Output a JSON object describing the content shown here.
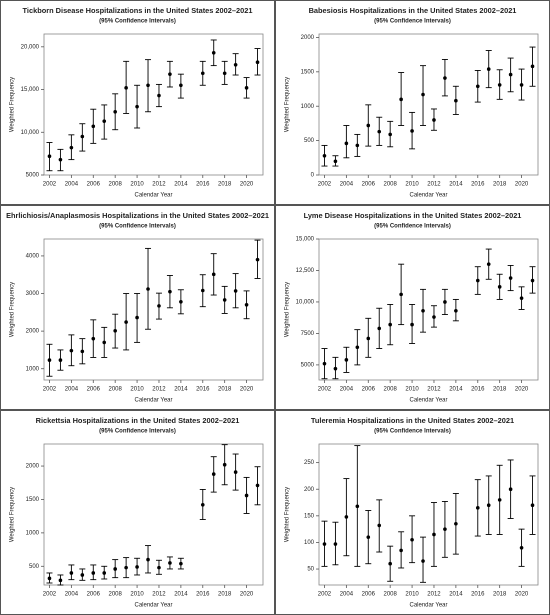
{
  "chart_data": [
    {
      "type": "errorbar",
      "title": "Tickborn Disease Hospitalizations in the United States 2002–2021",
      "subtitle": "(95% Confidence Intervals)",
      "xlabel": "Calendar Year",
      "ylabel": "Weighted Frequency",
      "color": "#000000",
      "x": [
        2002,
        2003,
        2004,
        2005,
        2006,
        2007,
        2008,
        2009,
        2010,
        2011,
        2012,
        2013,
        2014,
        2016,
        2017,
        2018,
        2019,
        2020,
        2021
      ],
      "values": [
        7200,
        6800,
        8200,
        9500,
        10700,
        11300,
        12400,
        15200,
        13000,
        15500,
        14300,
        16800,
        15500,
        16900,
        19300,
        16900,
        17900,
        15200,
        18200
      ],
      "lower": [
        5500,
        5500,
        6800,
        7800,
        8700,
        9200,
        10300,
        12200,
        10500,
        12400,
        13000,
        15300,
        14000,
        15500,
        17800,
        15600,
        16700,
        14000,
        16700
      ],
      "upper": [
        8800,
        8000,
        9700,
        11000,
        12700,
        13200,
        14500,
        18300,
        15500,
        18500,
        15600,
        18300,
        16800,
        18300,
        20800,
        18300,
        19200,
        16400,
        19800
      ],
      "xlim": [
        2001.5,
        2021.5
      ],
      "xticks": [
        2002,
        2004,
        2006,
        2008,
        2010,
        2012,
        2014,
        2016,
        2018,
        2020
      ],
      "ylim": [
        5000,
        21500
      ],
      "yticks": [
        5000,
        {
          "value": 10000,
          "label": "10,000"
        },
        {
          "value": 15000,
          "label": "15,000"
        },
        {
          "value": 20000,
          "label": "20,000"
        }
      ]
    },
    {
      "type": "errorbar",
      "title": "Babesiosis  Hospitalizations in the United States 2002–2021",
      "subtitle": "(95% Confidence Intervals)",
      "xlabel": "Calendar Year",
      "ylabel": "Weighted Frequency",
      "color": "#000000",
      "x": [
        2002,
        2003,
        2004,
        2005,
        2006,
        2007,
        2008,
        2009,
        2010,
        2011,
        2012,
        2013,
        2014,
        2016,
        2017,
        2018,
        2019,
        2020,
        2021
      ],
      "values": [
        280,
        200,
        460,
        430,
        720,
        630,
        590,
        1100,
        640,
        1170,
        800,
        1410,
        1080,
        1290,
        1540,
        1310,
        1460,
        1310,
        1580
      ],
      "lower": [
        130,
        130,
        250,
        270,
        420,
        430,
        410,
        720,
        380,
        720,
        650,
        1150,
        880,
        1060,
        1270,
        1100,
        1210,
        1090,
        1290
      ],
      "upper": [
        430,
        280,
        720,
        590,
        1020,
        840,
        780,
        1490,
        910,
        1590,
        960,
        1680,
        1290,
        1520,
        1810,
        1530,
        1700,
        1540,
        1860
      ],
      "xlim": [
        2001.5,
        2021.5
      ],
      "xticks": [
        2002,
        2004,
        2006,
        2008,
        2010,
        2012,
        2014,
        2016,
        2018,
        2020
      ],
      "ylim": [
        0,
        2050
      ],
      "yticks": [
        0,
        500,
        1000,
        1500,
        2000
      ]
    },
    {
      "type": "errorbar",
      "title": "Ehrlichiosis/Anaplasmosis Hospitalizations in the United States 2002–2021",
      "subtitle": "(95% Confidence Intervals)",
      "xlabel": "Calendar Year",
      "ylabel": "Weighted Frequency",
      "color": "#000000",
      "x": [
        2002,
        2003,
        2004,
        2005,
        2006,
        2007,
        2008,
        2009,
        2010,
        2011,
        2012,
        2013,
        2014,
        2016,
        2017,
        2018,
        2019,
        2020,
        2021
      ],
      "values": [
        1230,
        1230,
        1480,
        1460,
        1800,
        1700,
        2010,
        2240,
        2360,
        3120,
        2670,
        3050,
        2780,
        3080,
        3510,
        2830,
        3070,
        2700,
        3900
      ],
      "lower": [
        800,
        960,
        1080,
        1130,
        1300,
        1300,
        1550,
        1500,
        1700,
        2050,
        2320,
        2620,
        2460,
        2650,
        2960,
        2470,
        2620,
        2330,
        3400
      ],
      "upper": [
        1650,
        1500,
        1900,
        1800,
        2300,
        2100,
        2450,
        3000,
        3000,
        4200,
        3010,
        3480,
        3100,
        3500,
        4060,
        3190,
        3530,
        3070,
        4420
      ],
      "xlim": [
        2001.5,
        2021.5
      ],
      "xticks": [
        2002,
        2004,
        2006,
        2008,
        2010,
        2012,
        2014,
        2016,
        2018,
        2020
      ],
      "ylim": [
        700,
        4450
      ],
      "yticks": [
        1000,
        2000,
        3000,
        4000
      ]
    },
    {
      "type": "errorbar",
      "title": "Lyme Disease Hospitalizations in the United States 2002–2021",
      "subtitle": "(95% Confidence Intervals)",
      "xlabel": "Calendar Year",
      "ylabel": "Weighted Frequency",
      "color": "#000000",
      "x": [
        2002,
        2003,
        2004,
        2005,
        2006,
        2007,
        2008,
        2009,
        2010,
        2011,
        2012,
        2013,
        2014,
        2016,
        2017,
        2018,
        2019,
        2020,
        2021
      ],
      "values": [
        5100,
        4700,
        5400,
        6400,
        7100,
        7900,
        8200,
        10600,
        8200,
        9300,
        8800,
        10000,
        9300,
        11700,
        13000,
        11200,
        11900,
        10300,
        11700
      ],
      "lower": [
        3900,
        3900,
        4400,
        5000,
        5600,
        6300,
        6600,
        8200,
        6700,
        7600,
        8000,
        9000,
        8500,
        10600,
        11800,
        10200,
        10900,
        9400,
        10700
      ],
      "upper": [
        6300,
        5600,
        6400,
        7800,
        8700,
        9500,
        9800,
        13000,
        9800,
        11000,
        9700,
        11000,
        10200,
        12800,
        14200,
        12200,
        12900,
        11200,
        12800
      ],
      "xlim": [
        2001.5,
        2021.5
      ],
      "xticks": [
        2002,
        2004,
        2006,
        2008,
        2010,
        2012,
        2014,
        2016,
        2018,
        2020
      ],
      "ylim": [
        3800,
        15000
      ],
      "yticks": [
        5000,
        7500,
        {
          "value": 10000,
          "label": "10,000"
        },
        {
          "value": 12500,
          "label": "12,500"
        },
        {
          "value": 15000,
          "label": "15,000"
        }
      ]
    },
    {
      "type": "errorbar",
      "title": "Rickettsia Hospitalizations in the United States 2002–2021",
      "subtitle": "(95% Confidence Intervals)",
      "xlabel": "Calendar Year",
      "ylabel": "Weighted Frequency",
      "color": "#000000",
      "x": [
        2002,
        2003,
        2004,
        2005,
        2006,
        2007,
        2008,
        2009,
        2010,
        2011,
        2012,
        2013,
        2014,
        2016,
        2017,
        2018,
        2019,
        2020,
        2021
      ],
      "values": [
        320,
        290,
        400,
        370,
        400,
        400,
        460,
        480,
        490,
        600,
        480,
        550,
        540,
        1420,
        1880,
        2020,
        1910,
        1560,
        1710
      ],
      "lower": [
        250,
        220,
        300,
        290,
        300,
        310,
        330,
        330,
        370,
        400,
        380,
        460,
        460,
        1200,
        1610,
        1720,
        1640,
        1290,
        1420
      ],
      "upper": [
        400,
        370,
        520,
        460,
        520,
        500,
        600,
        630,
        620,
        810,
        590,
        640,
        620,
        1650,
        2140,
        2320,
        2180,
        1830,
        1990
      ],
      "xlim": [
        2001.5,
        2021.5
      ],
      "xticks": [
        2002,
        2004,
        2006,
        2008,
        2010,
        2012,
        2014,
        2016,
        2018,
        2020
      ],
      "ylim": [
        220,
        2330
      ],
      "yticks": [
        500,
        1000,
        1500,
        2000
      ]
    },
    {
      "type": "errorbar",
      "title": "Tuleremia Hospitalizations in the United States 2002–2021",
      "subtitle": "(95% Confidence Intervals)",
      "xlabel": "Calendar Year",
      "ylabel": "Weighted Frequency",
      "color": "#000000",
      "x": [
        2002,
        2003,
        2004,
        2005,
        2006,
        2007,
        2008,
        2009,
        2010,
        2011,
        2012,
        2013,
        2014,
        2016,
        2017,
        2018,
        2019,
        2020,
        2021
      ],
      "values": [
        97,
        97,
        148,
        168,
        110,
        132,
        60,
        85,
        105,
        65,
        115,
        125,
        135,
        165,
        170,
        180,
        200,
        90,
        170
      ],
      "lower": [
        55,
        58,
        75,
        55,
        60,
        82,
        27,
        52,
        62,
        25,
        55,
        72,
        78,
        112,
        115,
        115,
        145,
        55,
        115
      ],
      "upper": [
        140,
        138,
        220,
        282,
        160,
        180,
        93,
        120,
        150,
        110,
        175,
        177,
        192,
        218,
        225,
        245,
        255,
        125,
        225
      ],
      "xlim": [
        2001.5,
        2021.5
      ],
      "xticks": [
        2002,
        2004,
        2006,
        2008,
        2010,
        2012,
        2014,
        2016,
        2018,
        2020
      ],
      "ylim": [
        20,
        285
      ],
      "yticks": [
        50,
        100,
        150,
        200,
        250
      ]
    }
  ]
}
